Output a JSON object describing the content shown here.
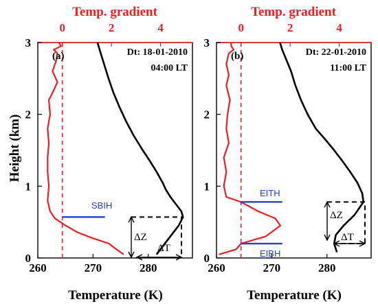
{
  "chart_data": [
    {
      "type": "line",
      "panel_label": "(a)",
      "date_text": "Dt: 18-01-2010",
      "time_text": "04:00 LT",
      "xlabel": "Temperature (K)",
      "ylabel": "Height (km)",
      "top_xlabel": "Temp. gradient",
      "xlim": [
        260,
        288
      ],
      "ylim": [
        0,
        3
      ],
      "xticks": [
        "260",
        "270",
        "280"
      ],
      "yticks": [
        "0",
        "1",
        "2",
        "3"
      ],
      "top_xlim": [
        -1,
        5.3
      ],
      "top_xticks": [
        "0",
        "2",
        "4"
      ],
      "colors": {
        "temperature": "#000000",
        "gradient": "#ee1c24",
        "annotation": "#1f3fd6"
      },
      "series": [
        {
          "axis": "bottom",
          "color": "#000000",
          "x": [
            281.5,
            283.5,
            285.5,
            286.3,
            286.0,
            285.0,
            284.0,
            283.2,
            282.6,
            281.5,
            280.3,
            279.0,
            277.4,
            276.0,
            274.8,
            273.7,
            272.8,
            272.0,
            271.4,
            270.8
          ],
          "y": [
            0.05,
            0.25,
            0.45,
            0.57,
            0.65,
            0.75,
            0.85,
            0.95,
            1.05,
            1.2,
            1.35,
            1.5,
            1.7,
            1.9,
            2.1,
            2.3,
            2.5,
            2.7,
            2.85,
            3.0
          ]
        },
        {
          "axis": "top",
          "color": "#ee1c24",
          "x": [
            2.5,
            2.2,
            1.9,
            1.2,
            0.6,
            0.1,
            -0.3,
            -0.5,
            -0.6,
            -0.55,
            -0.6,
            -0.6,
            -0.55,
            -0.6,
            -0.5,
            -0.55,
            -0.4,
            -0.2,
            -0.4,
            -0.25,
            -0.2,
            -0.35,
            -0.05,
            -0.15
          ],
          "y": [
            0.05,
            0.12,
            0.2,
            0.28,
            0.36,
            0.46,
            0.55,
            0.65,
            0.8,
            1.0,
            1.2,
            1.4,
            1.6,
            1.8,
            2.0,
            2.2,
            2.3,
            2.45,
            2.6,
            2.75,
            2.85,
            2.9,
            2.95,
            3.0
          ]
        }
      ],
      "annotations": [
        {
          "text": "SBIH",
          "value": 0.57
        },
        {
          "text": "ΔZ"
        },
        {
          "text": "ΔT"
        }
      ]
    },
    {
      "type": "line",
      "panel_label": "(b)",
      "date_text": "Dt: 22-01-2010",
      "time_text": "11:00 LT",
      "xlabel": "Temperature (K)",
      "ylabel": "",
      "top_xlabel": "Temp. gradient",
      "xlim": [
        260,
        288
      ],
      "ylim": [
        0,
        3
      ],
      "xticks": [
        "260",
        "270",
        "280"
      ],
      "yticks": [
        "0",
        "1",
        "2",
        "3"
      ],
      "top_xlim": [
        -1,
        5.3
      ],
      "top_xticks": [
        "0",
        "2",
        "4"
      ],
      "colors": {
        "temperature": "#000000",
        "gradient": "#ee1c24",
        "annotation": "#1f3fd6"
      },
      "series": [
        {
          "axis": "bottom",
          "color": "#000000",
          "x": [
            281.8,
            281.3,
            281.6,
            283.0,
            285.0,
            286.6,
            286.4,
            285.5,
            284.2,
            282.8,
            281.3,
            279.7,
            278.0,
            276.5,
            275.3,
            274.3,
            273.5,
            272.7,
            271.9,
            271.5
          ],
          "y": [
            0.08,
            0.2,
            0.32,
            0.45,
            0.6,
            0.78,
            0.9,
            1.05,
            1.2,
            1.35,
            1.5,
            1.65,
            1.8,
            2.0,
            2.2,
            2.4,
            2.6,
            2.75,
            2.9,
            3.0
          ]
        },
        {
          "axis": "top",
          "color": "#ee1c24",
          "x": [
            -0.9,
            -0.2,
            0.0,
            1.0,
            1.6,
            1.4,
            0.7,
            0.0,
            -0.6,
            -0.7,
            -0.6,
            -0.7,
            -0.5,
            -0.6,
            -0.55,
            -0.45,
            -0.6,
            -0.5,
            -0.6,
            -0.5,
            -0.3,
            -0.4,
            -0.4
          ],
          "y": [
            0.05,
            0.12,
            0.2,
            0.3,
            0.45,
            0.55,
            0.65,
            0.78,
            0.85,
            1.0,
            1.2,
            1.4,
            1.6,
            1.8,
            2.0,
            2.2,
            2.4,
            2.55,
            2.7,
            2.85,
            2.9,
            2.95,
            3.0
          ]
        }
      ],
      "annotations": [
        {
          "text": "EITH",
          "value": 0.78
        },
        {
          "text": "EIBH",
          "value": 0.2
        },
        {
          "text": "ΔZ"
        },
        {
          "text": "ΔT"
        }
      ]
    }
  ]
}
